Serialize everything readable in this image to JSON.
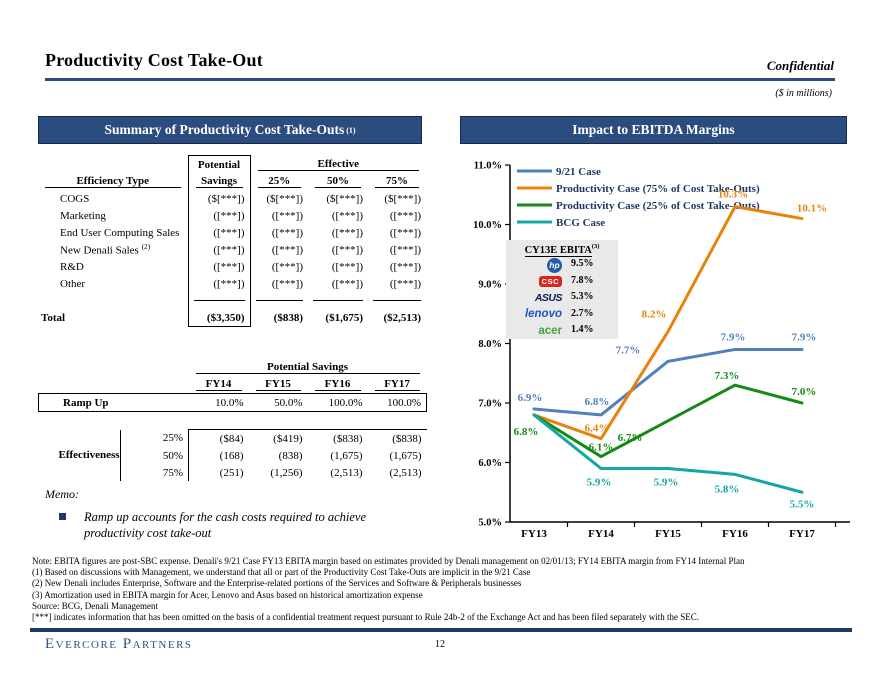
{
  "header": {
    "title": "Productivity Cost Take-Out",
    "confidential": "Confidential",
    "units_note": "($ in millions)"
  },
  "left_panel": {
    "header": "Summary of Productivity Cost Take-Outs",
    "header_sup": "(1)",
    "table1": {
      "efficiency_label": "Efficiency Type",
      "potential_line1": "Potential",
      "potential_line2": "Savings",
      "effective_label": "Effective",
      "effective_cols": [
        "25%",
        "50%",
        "75%"
      ],
      "rows": [
        {
          "label": "COGS",
          "sup": "",
          "values": [
            "($[***])",
            "($[***])",
            "($[***])",
            "($[***])"
          ]
        },
        {
          "label": "Marketing",
          "sup": "",
          "values": [
            "([***])",
            "([***])",
            "([***])",
            "([***])"
          ]
        },
        {
          "label": "End User Computing Sales",
          "sup": "",
          "values": [
            "([***])",
            "([***])",
            "([***])",
            "([***])"
          ]
        },
        {
          "label": "New Denali Sales",
          "sup": "(2)",
          "values": [
            "([***])",
            "([***])",
            "([***])",
            "([***])"
          ]
        },
        {
          "label": "R&D",
          "sup": "",
          "values": [
            "([***])",
            "([***])",
            "([***])",
            "([***])"
          ]
        },
        {
          "label": "Other",
          "sup": "",
          "values": [
            "([***])",
            "([***])",
            "([***])",
            "([***])"
          ]
        }
      ],
      "total_label": "Total",
      "total_values": [
        "($3,350)",
        "($838)",
        "($1,675)",
        "($2,513)"
      ]
    },
    "table2": {
      "group_header": "Potential Savings",
      "years": [
        "FY14",
        "FY15",
        "FY16",
        "FY17"
      ],
      "ramp_label": "Ramp Up",
      "ramp_values": [
        "10.0%",
        "50.0%",
        "100.0%",
        "100.0%"
      ],
      "effectiveness_label": "Effectiveness",
      "effectiveness_rows": [
        {
          "pct": "25%",
          "values": [
            "($84)",
            "($419)",
            "($838)",
            "($838)"
          ]
        },
        {
          "pct": "50%",
          "values": [
            "(168)",
            "(838)",
            "(1,675)",
            "(1,675)"
          ]
        },
        {
          "pct": "75%",
          "values": [
            "(251)",
            "(1,256)",
            "(2,513)",
            "(2,513)"
          ]
        }
      ]
    },
    "memo_title": "Memo:",
    "memo_bullet": "Ramp up accounts for the cash costs required to achieve productivity cost take-out"
  },
  "right_panel": {
    "header": "Impact to EBITDA Margins",
    "ebita_box": {
      "title": "CY13E EBITA",
      "title_sup": "(3)",
      "rows": [
        {
          "company": "hp",
          "value": "9.5%"
        },
        {
          "company": "CSC",
          "value": "7.8%"
        },
        {
          "company": "ASUS",
          "value": "5.3%"
        },
        {
          "company": "lenovo",
          "value": "2.7%"
        },
        {
          "company": "acer",
          "value": "1.4%"
        }
      ]
    }
  },
  "chart_data": {
    "type": "line",
    "x": [
      "FY13",
      "FY14",
      "FY15",
      "FY16",
      "FY17"
    ],
    "ylim": [
      5.0,
      11.0
    ],
    "ytick_labels": [
      "5.0%",
      "6.0%",
      "7.0%",
      "8.0%",
      "9.0%",
      "10.0%",
      "11.0%"
    ],
    "grid": false,
    "legend_position": "top-left",
    "series": [
      {
        "name": "9/21 Case",
        "color": "#4F81BD",
        "values": [
          6.9,
          6.8,
          7.7,
          7.9,
          7.9
        ],
        "point_labels": [
          "6.9%",
          "6.8%",
          "7.7%",
          "7.9%",
          "7.9%"
        ]
      },
      {
        "name": "Productivity Case (75% of Cost Take-Outs)",
        "color": "#E8820C",
        "values": [
          6.8,
          6.4,
          8.2,
          10.3,
          10.1
        ],
        "point_labels": [
          null,
          "6.4%",
          "8.2%",
          "10.3%",
          "10.1%"
        ]
      },
      {
        "name": "Productivity Case (25% of Cost Take-Outs)",
        "color": "#168A16",
        "values": [
          6.8,
          6.1,
          6.7,
          7.3,
          7.0
        ],
        "point_labels": [
          "6.8%",
          "6.1%",
          "6.7%",
          "7.3%",
          "7.0%"
        ]
      },
      {
        "name": "BCG Case",
        "color": "#17A5A5",
        "values": [
          6.8,
          5.9,
          5.9,
          5.8,
          5.5
        ],
        "point_labels": [
          null,
          "5.9%",
          "5.9%",
          "5.8%",
          "5.5%"
        ]
      }
    ]
  },
  "footnotes": [
    "Note: EBITA figures are post-SBC expense. Denali's 9/21 Case FY13 EBITA margin based on estimates provided by Denali management on 02/01/13; FY14 EBITA margin from FY14 Internal Plan",
    "(1) Based on discussions with Management, we understand that all or part of the Productivity Cost Take-Outs are implicit in the 9/21 Case",
    "(2) New Denali includes Enterprise, Software and the Enterprise-related portions of the Services and Software & Peripherals businesses",
    "(3) Amortization used in EBITA margin for Acer, Lenovo and Asus based on historical amortization expense",
    "Source: BCG, Denali Management",
    "[***] indicates information that has been omitted on the basis of a confidential treatment request pursuant to Rule 24b-2 of the Exchange Act and has been filed separately with the SEC."
  ],
  "footer": {
    "brand": "Evercore Partners",
    "page_number": "12"
  }
}
